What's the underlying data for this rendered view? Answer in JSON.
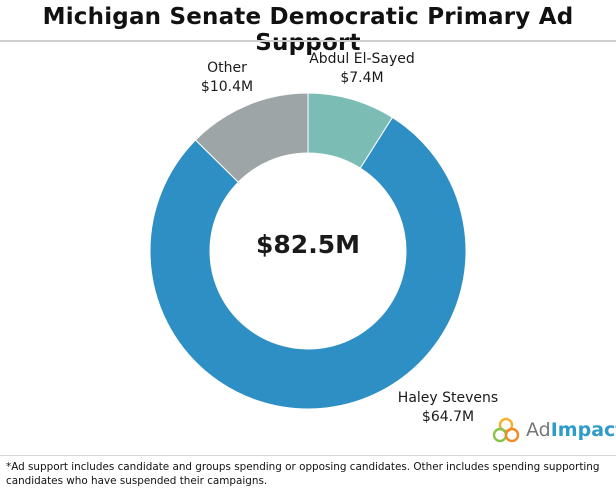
{
  "header": {
    "title": "Michigan Senate Democratic Primary Ad Support"
  },
  "chart_data": {
    "type": "pie",
    "variant": "donut",
    "center_label": "$82.5M",
    "slices": [
      {
        "name": "Abdul El-Sayed",
        "label": "$7.4M",
        "value": 7.4,
        "color": "#7bbdb5"
      },
      {
        "name": "Haley Stevens",
        "label": "$64.7M",
        "value": 64.7,
        "color": "#2e8fc4"
      },
      {
        "name": "Other",
        "label": "$10.4M",
        "value": 10.4,
        "color": "#9ea5a6"
      }
    ]
  },
  "branding": {
    "logo_ad": "Ad",
    "logo_impact": "Impact"
  },
  "footnote": "*Ad support includes candidate and groups spending or opposing candidates. Other includes spending supporting candidates who have suspended their campaigns."
}
